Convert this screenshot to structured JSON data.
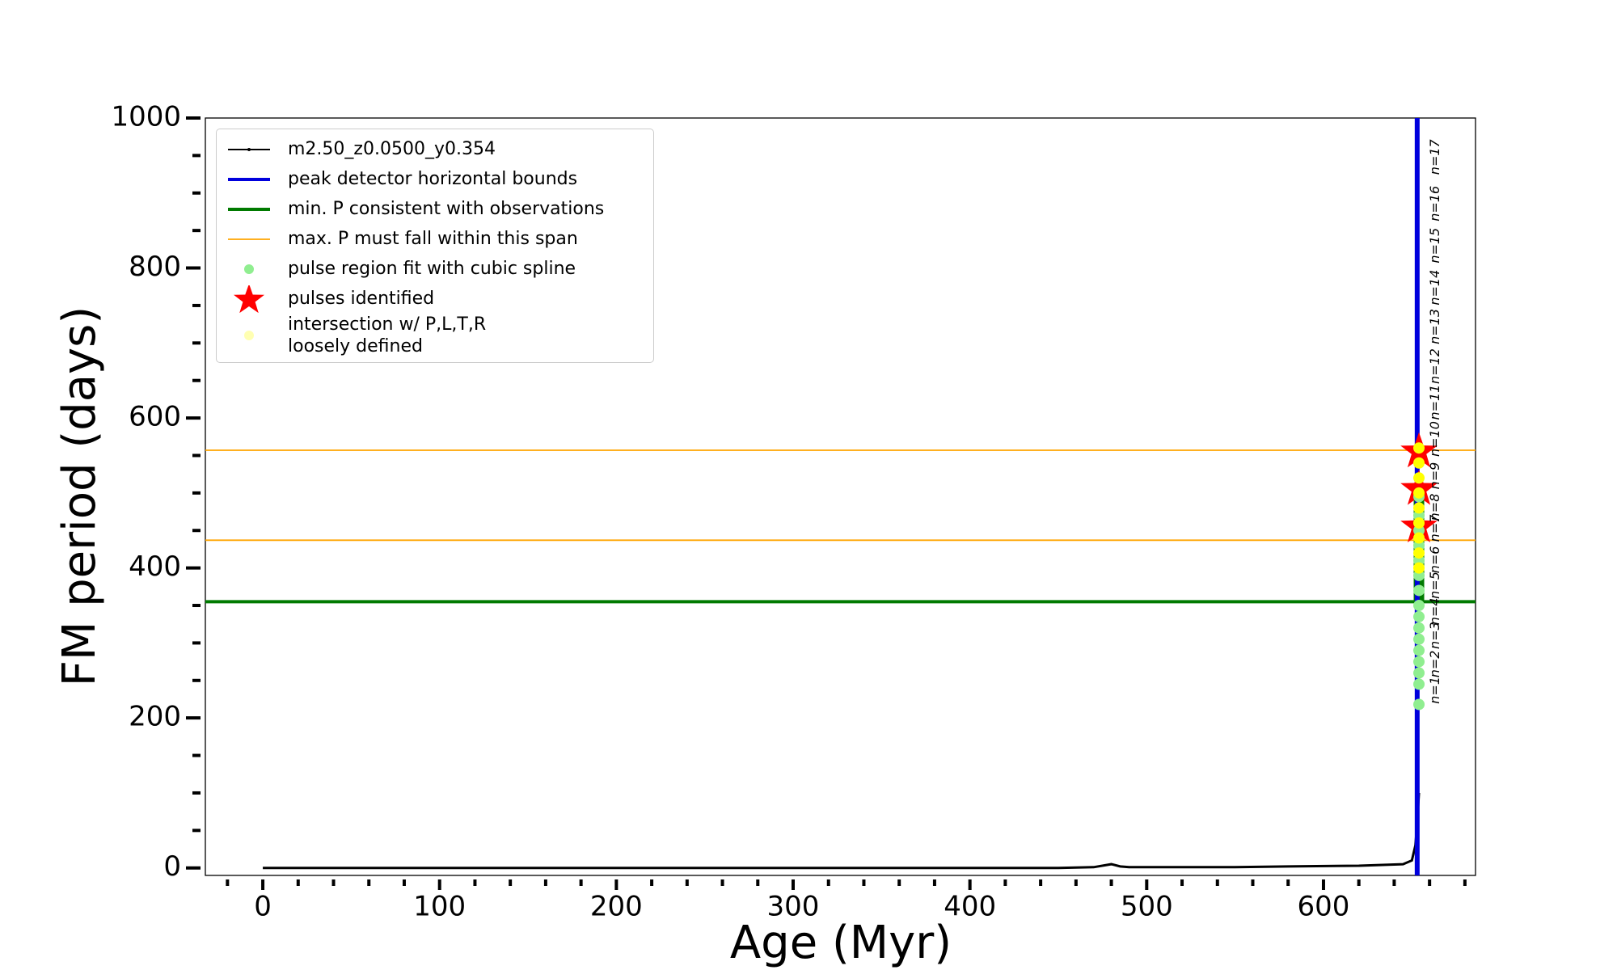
{
  "chart_data": {
    "type": "line",
    "xlabel": "Age (Myr)",
    "ylabel": "FM period (days)",
    "xlim": [
      -32.5,
      686
    ],
    "ylim": [
      -10,
      1000
    ],
    "xticks": [
      0,
      100,
      200,
      300,
      400,
      500,
      600
    ],
    "yticks": [
      0,
      200,
      400,
      600,
      800,
      1000
    ],
    "xminorticks": [
      -20,
      20,
      40,
      60,
      80,
      120,
      140,
      160,
      180,
      220,
      240,
      260,
      280,
      320,
      340,
      360,
      380,
      420,
      440,
      460,
      480,
      520,
      540,
      560,
      580,
      620,
      640,
      660,
      680
    ],
    "yminorticks": [
      50,
      100,
      150,
      250,
      300,
      350,
      450,
      500,
      550,
      650,
      700,
      750,
      850,
      900,
      950
    ],
    "legend": "upper left",
    "series": [
      {
        "name": "m2.50_z0.0500_y0.354",
        "kind": "line",
        "color": "#000000",
        "x": [
          0,
          100,
          200,
          300,
          400,
          450,
          470,
          480,
          485,
          490,
          550,
          580,
          620,
          645,
          650,
          652,
          653,
          654
        ],
        "values": [
          0,
          0,
          0,
          0,
          0,
          0,
          1,
          5,
          2,
          1,
          1,
          2,
          3,
          5,
          10,
          30,
          60,
          100
        ]
      },
      {
        "name": "peak detector horizontal bounds",
        "kind": "vline",
        "color": "#0000dd",
        "x": 653
      },
      {
        "name": "min. P consistent with observations",
        "kind": "hline",
        "color": "#007a00",
        "y": [
          355
        ],
        "segment": {
          "x": 654,
          "y": [
            355,
            495
          ]
        }
      },
      {
        "name": "max. P must fall within this span",
        "kind": "hline",
        "color": "#ffa500",
        "y": [
          437,
          557
        ]
      },
      {
        "name": "pulse region fit with cubic spline",
        "kind": "scatter",
        "color": "#90ee90",
        "x": [
          654,
          654,
          654,
          654,
          654,
          654,
          654,
          654,
          654,
          654,
          654,
          654,
          654,
          654,
          654,
          654
        ],
        "values": [
          218,
          245,
          260,
          275,
          290,
          305,
          320,
          335,
          350,
          370,
          390,
          410,
          430,
          450,
          470,
          495
        ]
      },
      {
        "name": "pulses identified",
        "kind": "star",
        "color": "#ff0000",
        "x": [
          654,
          654,
          654
        ],
        "values": [
          455,
          505,
          555
        ]
      },
      {
        "name": "intersection w/ P,L,T,R\nloosely defined",
        "kind": "scatter",
        "color": "#ffff00",
        "x": [
          654,
          654,
          654,
          654,
          654,
          654,
          654,
          654,
          654
        ],
        "values": [
          400,
          420,
          440,
          460,
          480,
          500,
          520,
          540,
          560
        ]
      }
    ],
    "annotations": [
      {
        "text": "n=1",
        "x": 657,
        "y": 237
      },
      {
        "text": "n=2",
        "x": 657,
        "y": 272
      },
      {
        "text": "n=3",
        "x": 657,
        "y": 310
      },
      {
        "text": "n=4",
        "x": 657,
        "y": 342
      },
      {
        "text": "n=5",
        "x": 657,
        "y": 377
      },
      {
        "text": "n=6",
        "x": 657,
        "y": 411
      },
      {
        "text": "n=7",
        "x": 657,
        "y": 453
      },
      {
        "text": "n=8",
        "x": 657,
        "y": 481
      },
      {
        "text": "n=9",
        "x": 657,
        "y": 523
      },
      {
        "text": "n=10",
        "x": 657,
        "y": 572
      },
      {
        "text": "n=11",
        "x": 657,
        "y": 621
      },
      {
        "text": "n=12",
        "x": 657,
        "y": 669
      },
      {
        "text": "n=13",
        "x": 657,
        "y": 722
      },
      {
        "text": "n=14",
        "x": 657,
        "y": 774
      },
      {
        "text": "n=15",
        "x": 657,
        "y": 830
      },
      {
        "text": "n=16",
        "x": 657,
        "y": 886
      },
      {
        "text": "n=17",
        "x": 657,
        "y": 948
      }
    ]
  }
}
